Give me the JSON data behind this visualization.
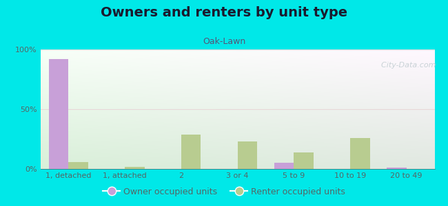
{
  "title": "Owners and renters by unit type",
  "subtitle": "Oak-Lawn",
  "categories": [
    "1, detached",
    "1, attached",
    "2",
    "3 or 4",
    "5 to 9",
    "10 to 19",
    "20 to 49"
  ],
  "owner_values": [
    92,
    0,
    0,
    0,
    5,
    0,
    1
  ],
  "renter_values": [
    6,
    2,
    29,
    23,
    14,
    26,
    0
  ],
  "owner_color": "#c8a0d8",
  "renter_color": "#b8cc90",
  "background_color": "#00e8e8",
  "plot_bg_topleft": "#e8f8e0",
  "plot_bg_topright": "#f8fff8",
  "plot_bg_bottomleft": "#d8f0d0",
  "plot_bg_bottomright": "#ffffff",
  "ylabel_ticks": [
    0,
    50,
    100
  ],
  "ylabel_labels": [
    "0%",
    "50%",
    "100%"
  ],
  "bar_width": 0.35,
  "legend_owner": "Owner occupied units",
  "legend_renter": "Renter occupied units",
  "title_fontsize": 14,
  "subtitle_fontsize": 9,
  "tick_fontsize": 8,
  "legend_fontsize": 9,
  "grid_color": "#e8d8d8",
  "title_color": "#1a1a2e",
  "subtitle_color": "#555577",
  "tick_color": "#556666",
  "watermark_color": "#c0ccd0"
}
